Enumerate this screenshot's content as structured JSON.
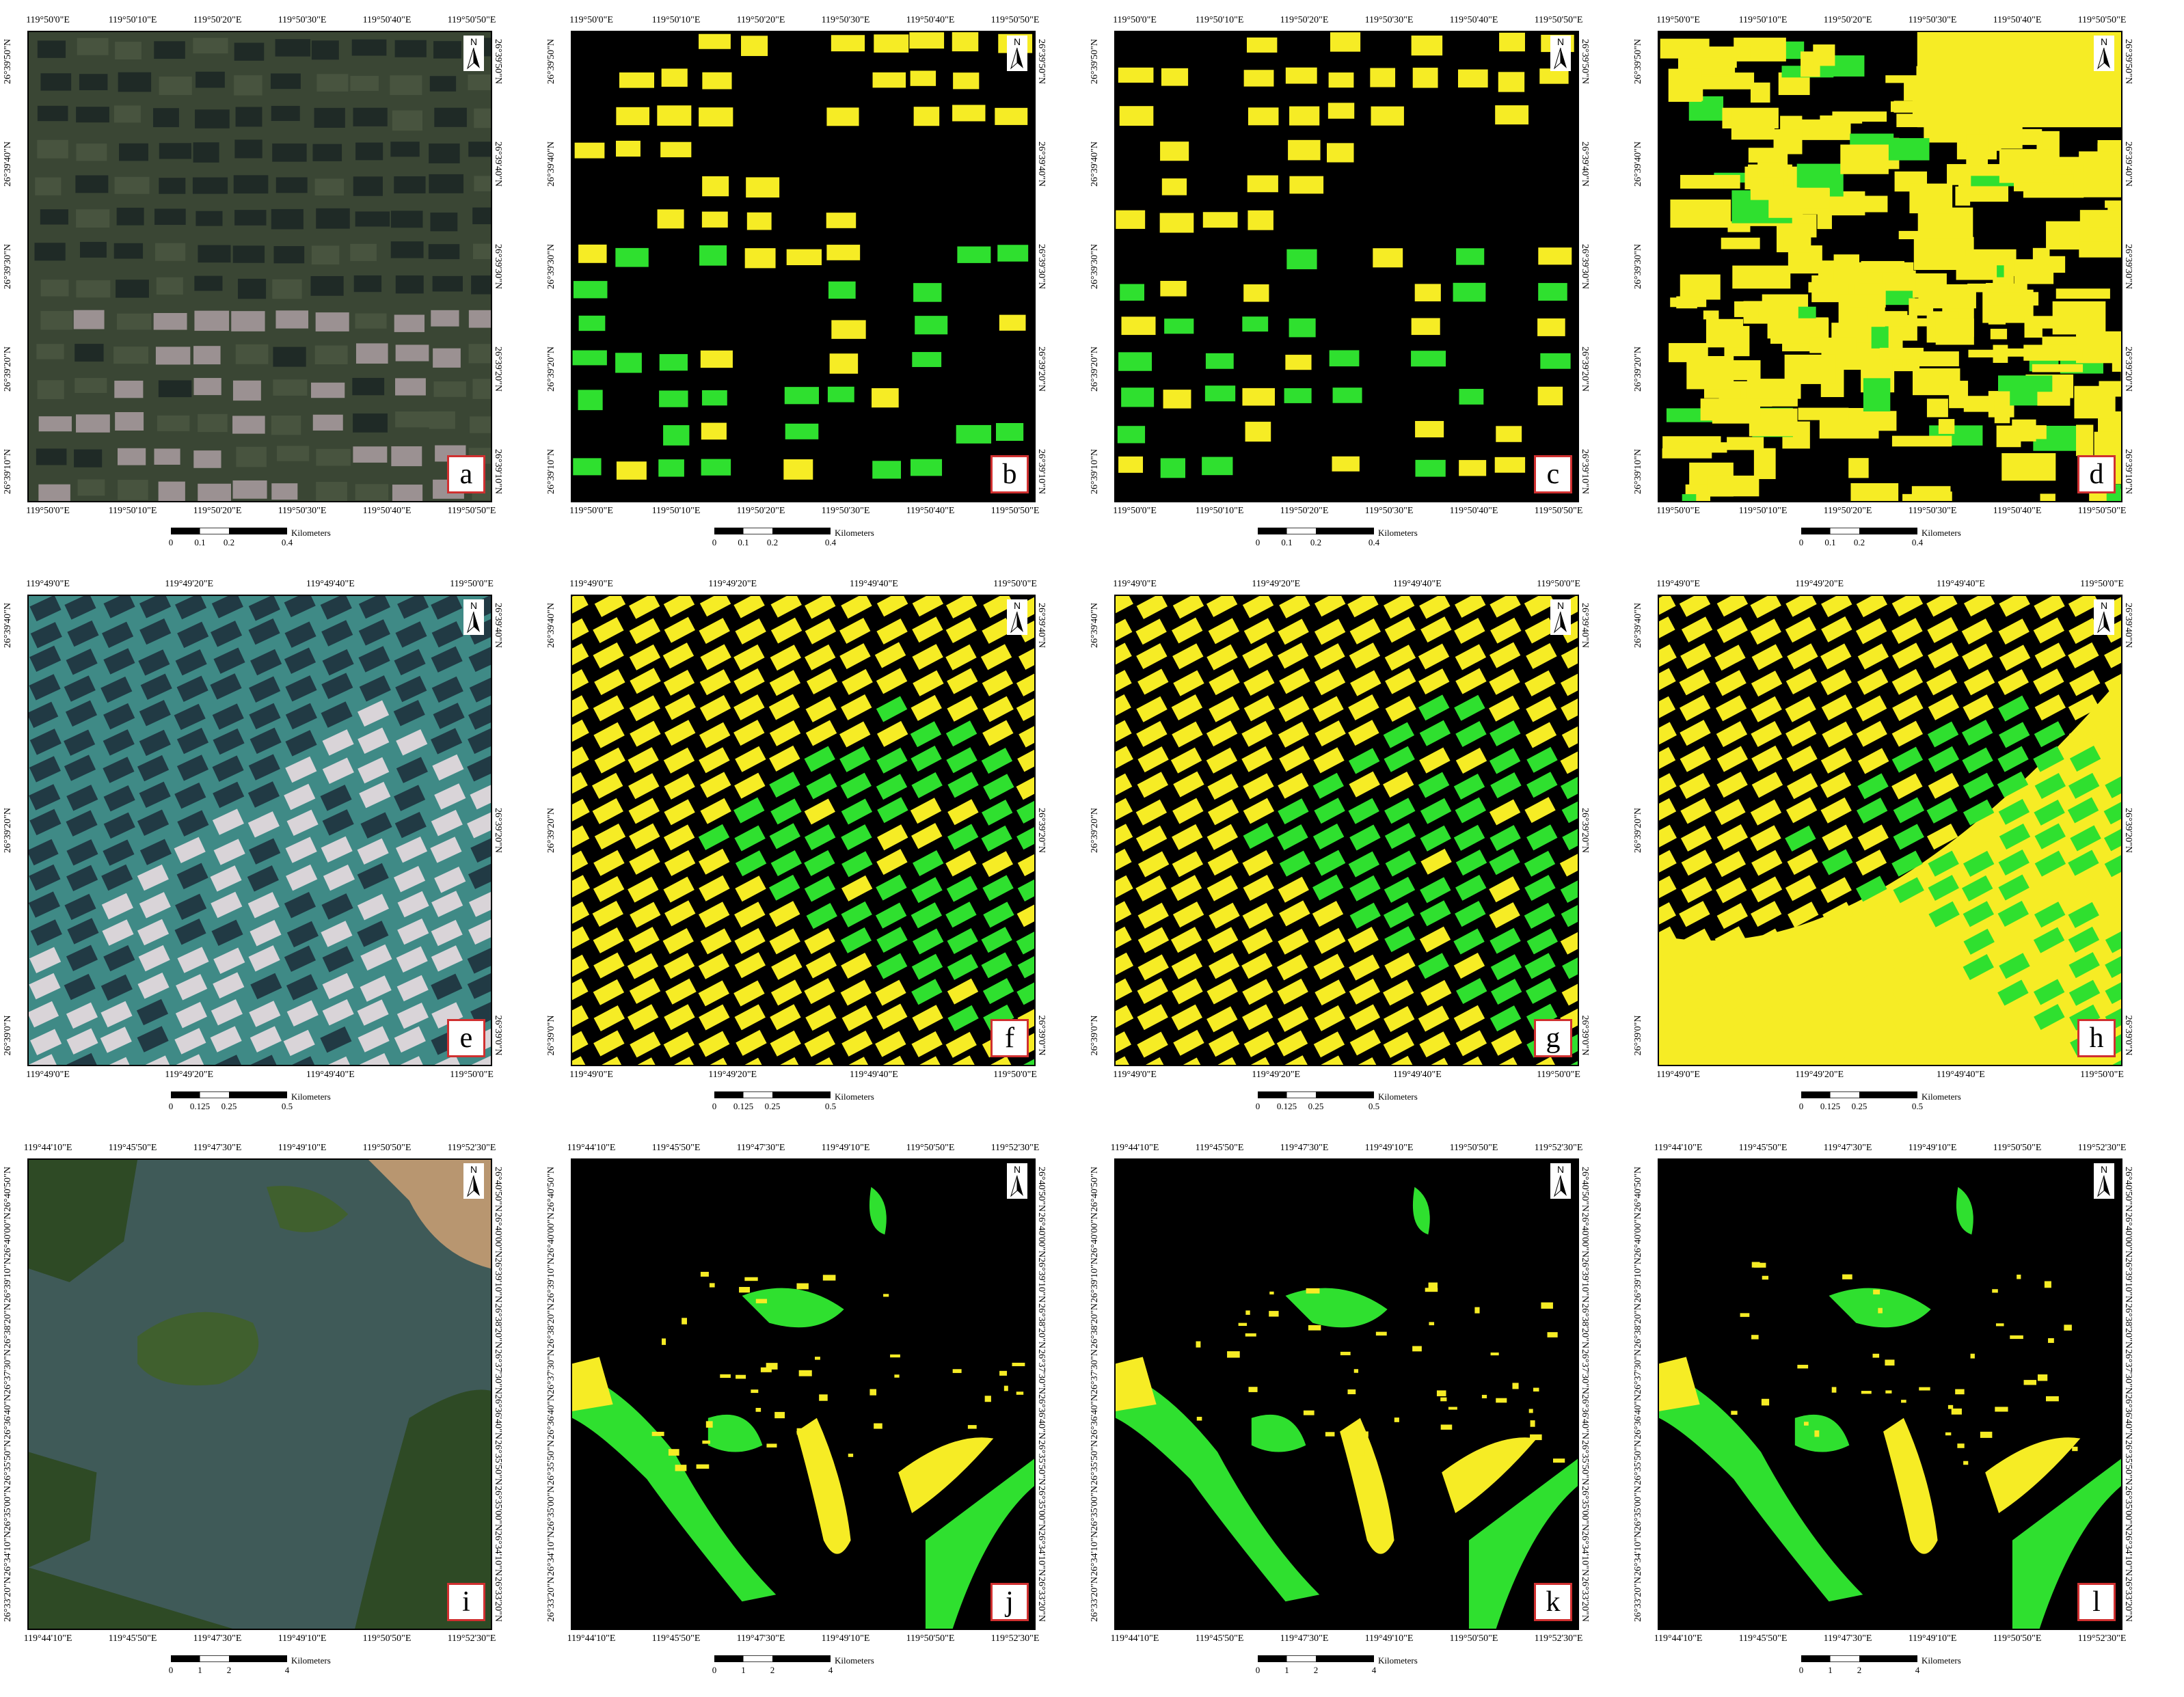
{
  "scale_unit": "Kilometers",
  "rows": [
    {
      "top_labels": [
        "119°50'0\"E",
        "119°50'10\"E",
        "119°50'20\"E",
        "119°50'30\"E",
        "119°50'40\"E",
        "119°50'50\"E"
      ],
      "bottom_labels": [
        "119°50'0\"E",
        "119°50'10\"E",
        "119°50'20\"E",
        "119°50'30\"E",
        "119°50'40\"E",
        "119°50'50\"E"
      ],
      "side_labels": [
        "26°39'50\"N",
        "26°39'40\"N",
        "26°39'30\"N",
        "26°39'20\"N",
        "26°39'10\"N"
      ],
      "scale_ticks": [
        "0",
        "0.1",
        "0.2",
        "0.4"
      ]
    },
    {
      "top_labels": [
        "119°49'0\"E",
        "119°49'20\"E",
        "119°49'40\"E",
        "119°50'0\"E"
      ],
      "bottom_labels": [
        "119°49'0\"E",
        "119°49'20\"E",
        "119°49'40\"E",
        "119°50'0\"E"
      ],
      "side_labels": [
        "26°39'40\"N",
        "26°39'20\"N",
        "26°39'0\"N"
      ],
      "scale_ticks": [
        "0",
        "0.125",
        "0.25",
        "0.5"
      ]
    },
    {
      "top_labels": [
        "119°44'10\"E",
        "119°45'50\"E",
        "119°47'30\"E",
        "119°49'10\"E",
        "119°50'50\"E",
        "119°52'30\"E"
      ],
      "bottom_labels": [
        "119°44'10\"E",
        "119°45'50\"E",
        "119°47'30\"E",
        "119°49'10\"E",
        "119°50'50\"E",
        "119°52'30\"E"
      ],
      "side_labels": [
        "26°40'50\"N",
        "26°40'00\"N",
        "26°39'10\"N",
        "26°38'20\"N",
        "26°37'30\"N",
        "26°36'40\"N",
        "26°35'50\"N",
        "26°35'00\"N",
        "26°34'10\"N",
        "26°33'20\"N"
      ],
      "scale_ticks": [
        "0",
        "1",
        "2",
        "4"
      ]
    }
  ],
  "panels": [
    {
      "letter": "a",
      "type": "rgb-dark"
    },
    {
      "letter": "b",
      "type": "class-sparse"
    },
    {
      "letter": "c",
      "type": "class-sparse"
    },
    {
      "letter": "d",
      "type": "class-noisy"
    },
    {
      "letter": "e",
      "type": "rgb-teal"
    },
    {
      "letter": "f",
      "type": "class-arc"
    },
    {
      "letter": "g",
      "type": "class-arc"
    },
    {
      "letter": "h",
      "type": "class-arc-fill"
    },
    {
      "letter": "i",
      "type": "rgb-coast"
    },
    {
      "letter": "j",
      "type": "class-coast"
    },
    {
      "letter": "k",
      "type": "class-coast"
    },
    {
      "letter": "l",
      "type": "class-coast"
    }
  ],
  "colors": {
    "class_1": "#f6ec25",
    "class_2": "#2fe02f",
    "background": "#000000",
    "frame_letter": "#d03030"
  },
  "north_label": "N"
}
